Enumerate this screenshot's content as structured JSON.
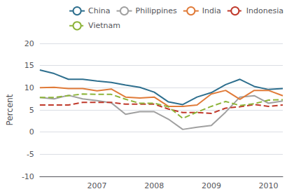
{
  "chart_data": {
    "type": "line",
    "ylabel": "Percent",
    "categories": [
      null,
      null,
      null,
      null,
      "2007",
      null,
      null,
      null,
      "2008",
      null,
      null,
      null,
      "2009",
      null,
      null,
      null,
      "2010",
      null
    ],
    "series": [
      {
        "name": "China",
        "color": "#2e6f8e",
        "line_style": "solid",
        "values": [
          14.0,
          13.2,
          11.9,
          11.9,
          11.5,
          11.2,
          10.6,
          10.1,
          9.0,
          6.8,
          6.2,
          7.9,
          8.9,
          10.7,
          11.9,
          10.3,
          9.6,
          9.8
        ]
      },
      {
        "name": "Philippines",
        "color": "#a0a0a0",
        "line_style": "solid",
        "values": [
          7.8,
          7.5,
          8.3,
          7.5,
          7.1,
          6.6,
          4.0,
          4.6,
          4.6,
          2.9,
          0.6,
          1.1,
          1.5,
          4.5,
          7.9,
          8.2,
          6.5,
          7.0
        ]
      },
      {
        "name": "India",
        "color": "#e07b39",
        "line_style": "solid",
        "values": [
          10.0,
          10.1,
          9.8,
          9.8,
          9.3,
          9.7,
          7.9,
          7.7,
          7.9,
          5.8,
          5.8,
          6.1,
          8.6,
          9.4,
          7.4,
          9.4,
          9.4,
          8.2
        ]
      },
      {
        "name": "Indonesia",
        "color": "#c0392b",
        "line_style": "dashed",
        "values": [
          6.1,
          6.1,
          6.1,
          6.7,
          6.7,
          6.7,
          6.3,
          6.3,
          6.3,
          5.2,
          4.4,
          4.4,
          4.2,
          5.4,
          5.7,
          6.2,
          5.8,
          6.1
        ]
      },
      {
        "name": "Vietnam",
        "color": "#8db43a",
        "line_style": "dashed",
        "values": [
          7.8,
          7.8,
          8.2,
          8.6,
          8.5,
          8.5,
          7.4,
          6.5,
          6.5,
          5.7,
          3.1,
          4.5,
          5.8,
          6.9,
          6.0,
          6.4,
          7.2,
          7.3
        ]
      }
    ],
    "ylim": [
      -10,
      20
    ],
    "yticks": [
      -10,
      -5,
      0,
      5,
      10,
      15,
      20
    ],
    "grid": true,
    "legend": "upper right"
  }
}
